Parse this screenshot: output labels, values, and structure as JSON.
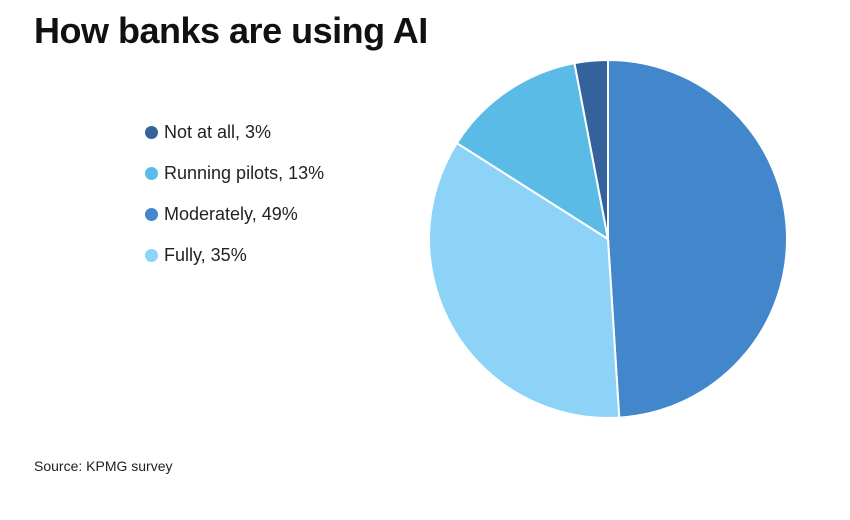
{
  "chart_data": {
    "type": "pie",
    "title": "How banks are using AI",
    "categories": [
      "Not at all",
      "Running pilots",
      "Moderately",
      "Fully"
    ],
    "values": [
      3,
      13,
      49,
      35
    ],
    "unit": "%",
    "legend_labels": [
      "Not at all, 3%",
      "Running pilots, 13%",
      "Moderately, 49%",
      "Fully, 35%"
    ],
    "colors": [
      "#33639a",
      "#5abbe6",
      "#4286cc",
      "#8dd3f8"
    ],
    "legend_placement": "left",
    "slice_order_clockwise_from_top": [
      "Moderately",
      "Fully",
      "Running pilots",
      "Not at all"
    ],
    "source": "Source: KPMG survey"
  }
}
